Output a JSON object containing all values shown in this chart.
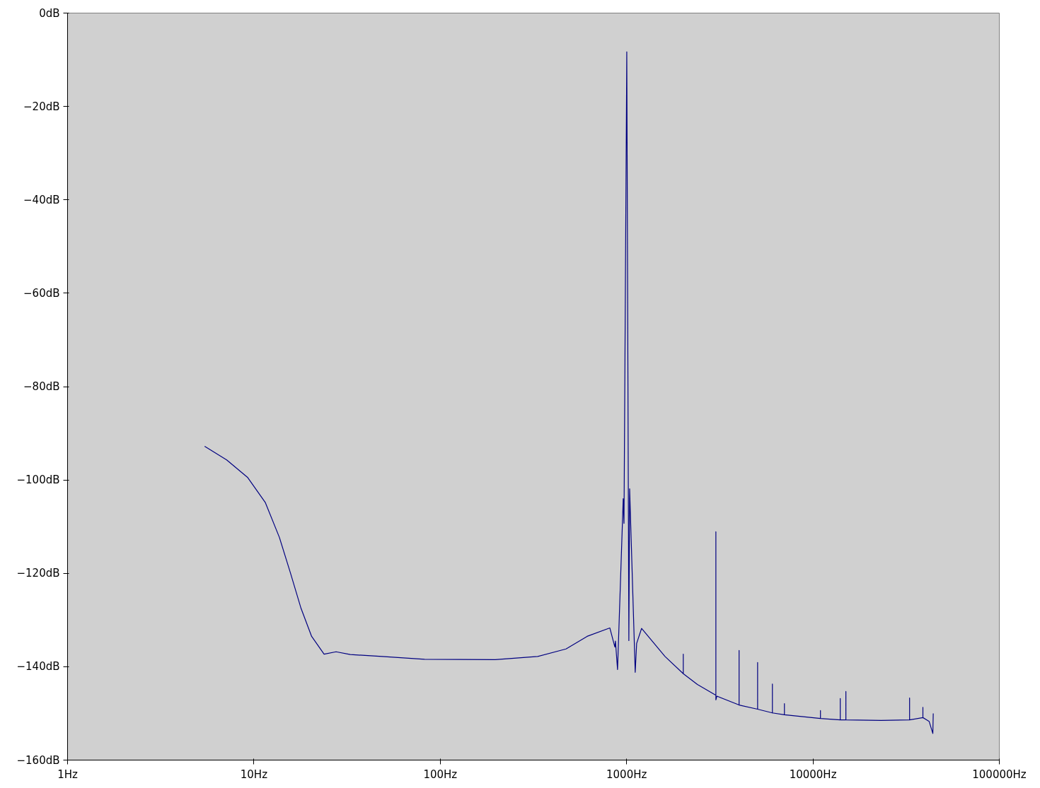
{
  "chart_data": {
    "type": "line",
    "log": "x",
    "grid": false,
    "marker": "none",
    "line_style": "solid",
    "xlim": [
      1,
      100000
    ],
    "ylim": [
      -160,
      0
    ],
    "xticks": [
      {
        "value": 1,
        "label": "1Hz"
      },
      {
        "value": 10,
        "label": "10Hz"
      },
      {
        "value": 100,
        "label": "100Hz"
      },
      {
        "value": 1000,
        "label": "1000Hz"
      },
      {
        "value": 10000,
        "label": "10000Hz"
      },
      {
        "value": 100000,
        "label": "100000Hz"
      }
    ],
    "yticks": [
      {
        "value": 0,
        "label": "0dB"
      },
      {
        "value": -20,
        "label": "−20dB"
      },
      {
        "value": -40,
        "label": "−40dB"
      },
      {
        "value": -60,
        "label": "−60dB"
      },
      {
        "value": -80,
        "label": "−80dB"
      },
      {
        "value": -100,
        "label": "−100dB"
      },
      {
        "value": -120,
        "label": "−120dB"
      },
      {
        "value": -140,
        "label": "−140dB"
      },
      {
        "value": -160,
        "label": "−160dB"
      }
    ],
    "series": [
      {
        "color": "#000080",
        "x": [
          5.44,
          7.14,
          9.27,
          11.5,
          13.7,
          15.7,
          17.9,
          20.4,
          23.8,
          27.6,
          32.9,
          48.7,
          82.4,
          197,
          333,
          473,
          614,
          813,
          865,
          871,
          894,
          959,
          968,
          1002,
          1028,
          1038,
          1112,
          1132,
          1203,
          1607,
          2014,
          2014,
          2014,
          2398,
          3013,
          3013,
          3013,
          3050,
          4014,
          4014,
          4014,
          5046,
          5046,
          5046,
          6058,
          6058,
          6058,
          7028,
          7028,
          7028,
          10970,
          10970,
          10970,
          14010,
          14010,
          14010,
          15020,
          15020,
          15020,
          23250,
          33000,
          33000,
          33000,
          38900,
          38900,
          38900,
          42000,
          43980,
          44200
        ],
        "values": [
          -92.8,
          -95.7,
          -99.5,
          -104.8,
          -112.3,
          -119.9,
          -127.5,
          -133.5,
          -137.3,
          -136.8,
          -137.4,
          -137.8,
          -138.4,
          -138.5,
          -137.8,
          -136.2,
          -133.5,
          -131.7,
          -135.8,
          -134.5,
          -140.6,
          -104.0,
          -109.3,
          -8.3,
          -134.4,
          -101.9,
          -141.2,
          -135.0,
          -131.8,
          -137.8,
          -141.5,
          -137.3,
          -141.5,
          -143.8,
          -146.1,
          -111.1,
          -147.1,
          -146.3,
          -148.2,
          -136.5,
          -148.2,
          -149.1,
          -139.1,
          -149.1,
          -149.9,
          -143.7,
          -149.9,
          -150.3,
          -147.9,
          -150.3,
          -151.1,
          -149.4,
          -151.1,
          -151.4,
          -146.8,
          -151.4,
          -151.4,
          -145.3,
          -151.4,
          -151.5,
          -151.4,
          -146.7,
          -151.4,
          -150.9,
          -148.7,
          -150.9,
          -151.7,
          -154.3,
          -150.0
        ]
      }
    ]
  }
}
